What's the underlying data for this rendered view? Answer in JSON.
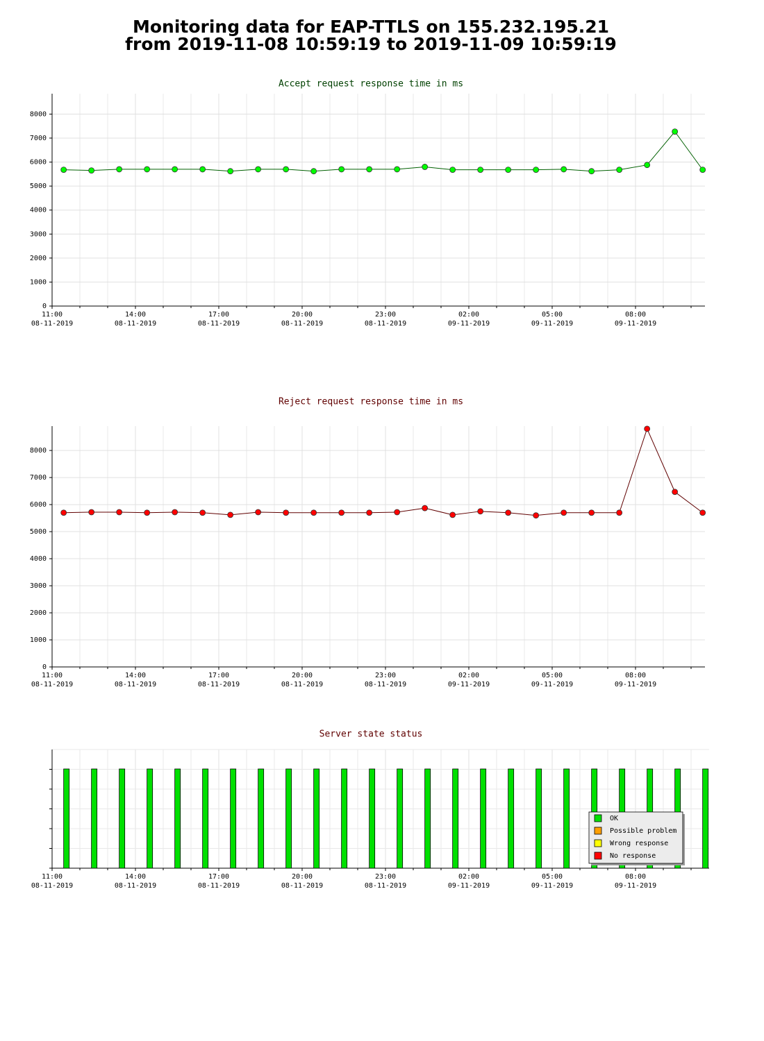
{
  "page_title": [
    "Monitoring data for EAP-TTLS on 155.232.195.21",
    "from 2019-11-08 10:59:19 to 2019-11-09 10:59:19"
  ],
  "chart_data": [
    {
      "type": "line",
      "title": "Accept request response time in ms",
      "title_color": "#004000",
      "grid": true,
      "x": [
        "08-11-2019 11:25",
        "08-11-2019 12:25",
        "08-11-2019 13:25",
        "08-11-2019 14:25",
        "08-11-2019 15:25",
        "08-11-2019 16:25",
        "08-11-2019 17:25",
        "08-11-2019 18:25",
        "08-11-2019 19:25",
        "08-11-2019 20:25",
        "08-11-2019 21:25",
        "08-11-2019 22:25",
        "08-11-2019 23:25",
        "09-11-2019 00:25",
        "09-11-2019 01:25",
        "09-11-2019 02:25",
        "09-11-2019 03:25",
        "09-11-2019 04:25",
        "09-11-2019 05:25",
        "09-11-2019 06:25",
        "09-11-2019 07:25",
        "09-11-2019 08:25",
        "09-11-2019 09:25",
        "09-11-2019 10:25"
      ],
      "series": [
        {
          "line_color": "#006000",
          "color": "#00ff00",
          "values": [
            5680,
            5650,
            5700,
            5700,
            5700,
            5700,
            5620,
            5700,
            5700,
            5620,
            5700,
            5700,
            5700,
            5800,
            5680,
            5680,
            5680,
            5680,
            5700,
            5620,
            5680,
            5880,
            7270,
            5680
          ]
        }
      ],
      "xlim": [
        "08-11-2019 11:00",
        "09-11-2019 10:30"
      ],
      "xticks": [
        {
          "value": "08-11-2019 11:00",
          "label": [
            "11:00",
            "08-11-2019"
          ]
        },
        {
          "value": "08-11-2019 14:00",
          "label": [
            "14:00",
            "08-11-2019"
          ]
        },
        {
          "value": "08-11-2019 17:00",
          "label": [
            "17:00",
            "08-11-2019"
          ]
        },
        {
          "value": "08-11-2019 20:00",
          "label": [
            "20:00",
            "08-11-2019"
          ]
        },
        {
          "value": "08-11-2019 23:00",
          "label": [
            "23:00",
            "08-11-2019"
          ]
        },
        {
          "value": "09-11-2019 02:00",
          "label": [
            "02:00",
            "09-11-2019"
          ]
        },
        {
          "value": "09-11-2019 05:00",
          "label": [
            "05:00",
            "09-11-2019"
          ]
        },
        {
          "value": "09-11-2019 08:00",
          "label": [
            "08:00",
            "09-11-2019"
          ]
        }
      ],
      "ylim": [
        0,
        8850
      ],
      "yticks": [
        0,
        1000,
        2000,
        3000,
        4000,
        5000,
        6000,
        7000,
        8000
      ]
    },
    {
      "type": "line",
      "title": "Reject request response time in ms",
      "title_color": "#600000",
      "grid": true,
      "x": [
        "08-11-2019 11:25",
        "08-11-2019 12:25",
        "08-11-2019 13:25",
        "08-11-2019 14:25",
        "08-11-2019 15:25",
        "08-11-2019 16:25",
        "08-11-2019 17:25",
        "08-11-2019 18:25",
        "08-11-2019 19:25",
        "08-11-2019 20:25",
        "08-11-2019 21:25",
        "08-11-2019 22:25",
        "08-11-2019 23:25",
        "09-11-2019 00:25",
        "09-11-2019 01:25",
        "09-11-2019 02:25",
        "09-11-2019 03:25",
        "09-11-2019 04:25",
        "09-11-2019 05:25",
        "09-11-2019 06:25",
        "09-11-2019 07:25",
        "09-11-2019 08:25",
        "09-11-2019 09:25",
        "09-11-2019 10:25"
      ],
      "series": [
        {
          "line_color": "#600000",
          "color": "#ff0000",
          "values": [
            5700,
            5720,
            5720,
            5700,
            5720,
            5700,
            5620,
            5720,
            5700,
            5700,
            5700,
            5700,
            5720,
            5870,
            5620,
            5750,
            5700,
            5600,
            5700,
            5700,
            5700,
            8800,
            6470,
            5700
          ]
        }
      ],
      "xlim": [
        "08-11-2019 11:00",
        "09-11-2019 10:30"
      ],
      "xticks": [
        {
          "value": "08-11-2019 11:00",
          "label": [
            "11:00",
            "08-11-2019"
          ]
        },
        {
          "value": "08-11-2019 14:00",
          "label": [
            "14:00",
            "08-11-2019"
          ]
        },
        {
          "value": "08-11-2019 17:00",
          "label": [
            "17:00",
            "08-11-2019"
          ]
        },
        {
          "value": "08-11-2019 20:00",
          "label": [
            "20:00",
            "08-11-2019"
          ]
        },
        {
          "value": "08-11-2019 23:00",
          "label": [
            "23:00",
            "08-11-2019"
          ]
        },
        {
          "value": "09-11-2019 02:00",
          "label": [
            "02:00",
            "09-11-2019"
          ]
        },
        {
          "value": "09-11-2019 05:00",
          "label": [
            "05:00",
            "09-11-2019"
          ]
        },
        {
          "value": "09-11-2019 08:00",
          "label": [
            "08:00",
            "09-11-2019"
          ]
        }
      ],
      "ylim": [
        0,
        8900
      ],
      "yticks": [
        0,
        1000,
        2000,
        3000,
        4000,
        5000,
        6000,
        7000,
        8000
      ]
    },
    {
      "type": "status",
      "title": "Server state status",
      "title_color": "#600000",
      "grid": true,
      "x": [
        "08-11-2019 11:25",
        "08-11-2019 12:25",
        "08-11-2019 13:25",
        "08-11-2019 14:25",
        "08-11-2019 15:25",
        "08-11-2019 16:25",
        "08-11-2019 17:25",
        "08-11-2019 18:25",
        "08-11-2019 19:25",
        "08-11-2019 20:25",
        "08-11-2019 21:25",
        "08-11-2019 22:25",
        "08-11-2019 23:25",
        "09-11-2019 00:25",
        "09-11-2019 01:25",
        "09-11-2019 02:25",
        "09-11-2019 03:25",
        "09-11-2019 04:25",
        "09-11-2019 05:25",
        "09-11-2019 06:25",
        "09-11-2019 07:25",
        "09-11-2019 08:25",
        "09-11-2019 09:25",
        "09-11-2019 10:25"
      ],
      "states": [
        "OK",
        "OK",
        "OK",
        "OK",
        "OK",
        "OK",
        "OK",
        "OK",
        "OK",
        "OK",
        "OK",
        "OK",
        "OK",
        "OK",
        "OK",
        "OK",
        "OK",
        "OK",
        "OK",
        "OK",
        "OK",
        "OK",
        "OK",
        "OK"
      ],
      "legend": [
        {
          "name": "OK",
          "color": "#00e000"
        },
        {
          "name": "Possible problem",
          "color": "#ff9f00"
        },
        {
          "name": "Wrong response",
          "color": "#ffff00"
        },
        {
          "name": "No response",
          "color": "#ff0000"
        }
      ],
      "xlim": [
        "08-11-2019 11:00",
        "09-11-2019 10:39"
      ],
      "xticks": [
        {
          "value": "08-11-2019 11:00",
          "label": [
            "11:00",
            "08-11-2019"
          ]
        },
        {
          "value": "08-11-2019 14:00",
          "label": [
            "14:00",
            "08-11-2019"
          ]
        },
        {
          "value": "08-11-2019 17:00",
          "label": [
            "17:00",
            "08-11-2019"
          ]
        },
        {
          "value": "08-11-2019 20:00",
          "label": [
            "20:00",
            "08-11-2019"
          ]
        },
        {
          "value": "08-11-2019 23:00",
          "label": [
            "23:00",
            "08-11-2019"
          ]
        },
        {
          "value": "09-11-2019 02:00",
          "label": [
            "02:00",
            "09-11-2019"
          ]
        },
        {
          "value": "09-11-2019 05:00",
          "label": [
            "05:00",
            "09-11-2019"
          ]
        },
        {
          "value": "09-11-2019 08:00",
          "label": [
            "08:00",
            "09-11-2019"
          ]
        }
      ]
    }
  ]
}
